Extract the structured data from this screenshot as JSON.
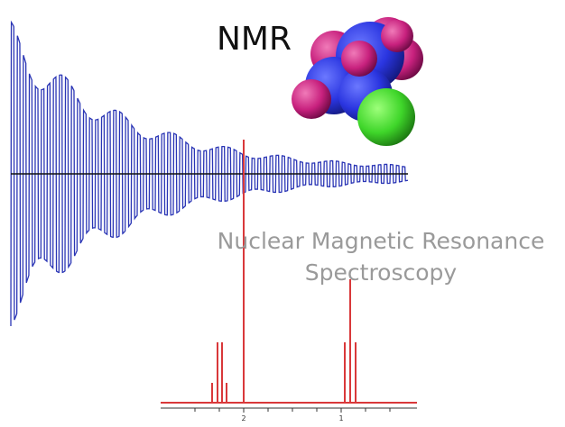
{
  "title": "NMR",
  "caption": [
    "Nuclear Magnetic Resonance",
    "Spectroscopy"
  ],
  "spectrum_axis_labels": [
    "2",
    "1"
  ]
}
